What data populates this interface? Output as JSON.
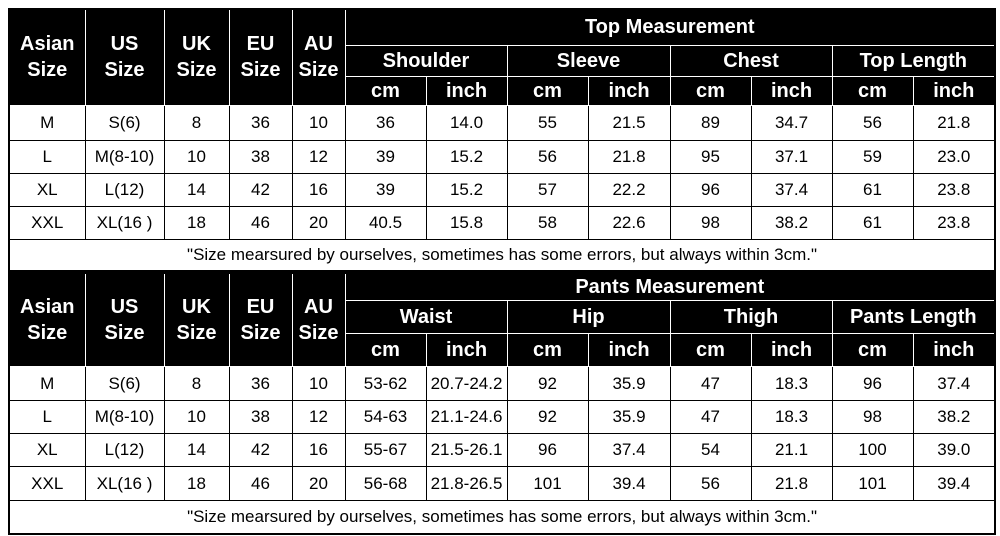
{
  "tables": [
    {
      "size_headers": [
        [
          "Asian",
          "Size"
        ],
        [
          "US",
          "Size"
        ],
        [
          "UK",
          "Size"
        ],
        [
          "EU",
          "Size"
        ],
        [
          "AU",
          "Size"
        ]
      ],
      "title": "Top Measurement",
      "groups": [
        "Shoulder",
        "Sleeve",
        "Chest",
        "Top Length"
      ],
      "units": [
        "cm",
        "inch",
        "cm",
        "inch",
        "cm",
        "inch",
        "cm",
        "inch"
      ],
      "rows": [
        [
          "M",
          "S(6)",
          "8",
          "36",
          "10",
          "36",
          "14.0",
          "55",
          "21.5",
          "89",
          "34.7",
          "56",
          "21.8"
        ],
        [
          "L",
          "M(8-10)",
          "10",
          "38",
          "12",
          "39",
          "15.2",
          "56",
          "21.8",
          "95",
          "37.1",
          "59",
          "23.0"
        ],
        [
          "XL",
          "L(12)",
          "14",
          "42",
          "16",
          "39",
          "15.2",
          "57",
          "22.2",
          "96",
          "37.4",
          "61",
          "23.8"
        ],
        [
          "XXL",
          "XL(16 )",
          "18",
          "46",
          "20",
          "40.5",
          "15.8",
          "58",
          "22.6",
          "98",
          "38.2",
          "61",
          "23.8"
        ]
      ],
      "note": "\"Size mearsured by ourselves, sometimes has some errors, but always within 3cm.\""
    },
    {
      "size_headers": [
        [
          "Asian",
          "Size"
        ],
        [
          "US",
          "Size"
        ],
        [
          "UK",
          "Size"
        ],
        [
          "EU",
          "Size"
        ],
        [
          "AU",
          "Size"
        ]
      ],
      "title": "Pants Measurement",
      "groups": [
        "Waist",
        "Hip",
        "Thigh",
        "Pants Length"
      ],
      "units": [
        "cm",
        "inch",
        "cm",
        "inch",
        "cm",
        "inch",
        "cm",
        "inch"
      ],
      "rows": [
        [
          "M",
          "S(6)",
          "8",
          "36",
          "10",
          "53-62",
          "20.7-24.2",
          "92",
          "35.9",
          "47",
          "18.3",
          "96",
          "37.4"
        ],
        [
          "L",
          "M(8-10)",
          "10",
          "38",
          "12",
          "54-63",
          "21.1-24.6",
          "92",
          "35.9",
          "47",
          "18.3",
          "98",
          "38.2"
        ],
        [
          "XL",
          "L(12)",
          "14",
          "42",
          "16",
          "55-67",
          "21.5-26.1",
          "96",
          "37.4",
          "54",
          "21.1",
          "100",
          "39.0"
        ],
        [
          "XXL",
          "XL(16 )",
          "18",
          "46",
          "20",
          "56-68",
          "21.8-26.5",
          "101",
          "39.4",
          "56",
          "21.8",
          "101",
          "39.4"
        ]
      ],
      "note": "\"Size mearsured by ourselves, sometimes has some errors, but always within 3cm.\""
    }
  ]
}
